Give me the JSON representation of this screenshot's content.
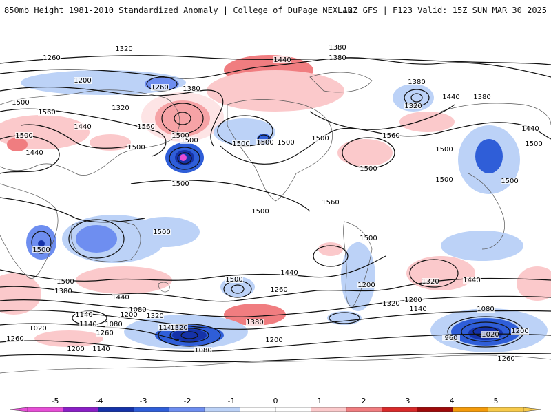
{
  "header": {
    "left": "850mb Height 1981-2010 Standardized Anomaly | College of DuPage NEXLAB",
    "right": "12Z GFS | F123 Valid: 15Z SUN MAR 30 2025"
  },
  "colorbar": {
    "ticks": [
      "-5",
      "-4",
      "-3",
      "-2",
      "-1",
      "0",
      "1",
      "2",
      "3",
      "4",
      "5"
    ],
    "colors": [
      "#e64ed6",
      "#8a1fc6",
      "#1532a8",
      "#2f5ed8",
      "#6e8ef0",
      "#bcd2f7",
      "#ffffff",
      "#ffffff",
      "#fbc9cb",
      "#f07d80",
      "#d82a2a",
      "#9e0a0a",
      "#f39a0a",
      "#f6c94a"
    ]
  },
  "contour_labels": [
    "1320",
    "1380",
    "1260",
    "1200",
    "1260",
    "1440",
    "1380",
    "1380",
    "1380",
    "1320",
    "1440",
    "1380",
    "1500",
    "1560",
    "1320",
    "1500",
    "1440",
    "1560",
    "1500",
    "1500",
    "1500",
    "1440",
    "1500",
    "1500",
    "1500",
    "1500",
    "1560",
    "1500",
    "1500",
    "1440",
    "1500",
    "1500",
    "1500",
    "1500",
    "1500",
    "1500",
    "1560",
    "1500",
    "1500",
    "1440",
    "1320",
    "1440",
    "1500",
    "1380",
    "1440",
    "1500",
    "1260",
    "1200",
    "1320",
    "1200",
    "1140",
    "1080",
    "1140",
    "1140",
    "1080",
    "1200",
    "1320",
    "1020",
    "1200",
    "1140",
    "1380",
    "1320",
    "1260",
    "1260",
    "1200",
    "1140",
    "1200",
    "1080",
    "1080",
    "960",
    "1020",
    "1200",
    "1260"
  ]
}
